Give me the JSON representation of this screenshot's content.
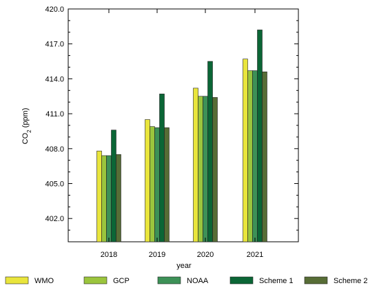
{
  "chart_data": {
    "type": "bar",
    "categories": [
      "2018",
      "2019",
      "2020",
      "2021"
    ],
    "series": [
      {
        "name": "WMO",
        "color": "#e9e53c",
        "values": [
          407.8,
          410.5,
          413.2,
          415.7
        ]
      },
      {
        "name": "GCP",
        "color": "#9bc53d",
        "values": [
          407.4,
          409.9,
          412.5,
          414.7
        ]
      },
      {
        "name": "NOAA",
        "color": "#3d9157",
        "values": [
          407.4,
          409.8,
          412.5,
          414.7
        ]
      },
      {
        "name": "Scheme 1",
        "color": "#0b6636",
        "values": [
          409.6,
          412.7,
          415.5,
          418.2
        ]
      },
      {
        "name": "Scheme 2",
        "color": "#576d36",
        "values": [
          407.5,
          409.8,
          412.4,
          414.6
        ]
      }
    ],
    "xlabel": "year",
    "ylabel_main": "CO",
    "ylabel_sub": "2",
    "ylabel_unit": " (ppm)",
    "ylim": [
      400.0,
      420.0
    ],
    "y_ticks": [
      402.0,
      405.0,
      408.0,
      411.0,
      414.0,
      417.0,
      420.0
    ],
    "y_tick_labels": [
      "402.0",
      "405.0",
      "408.0",
      "411.0",
      "414.0",
      "417.0",
      "420.0"
    ],
    "y_minor_step": 1.0,
    "legend_position": "bottom",
    "grid": false
  }
}
